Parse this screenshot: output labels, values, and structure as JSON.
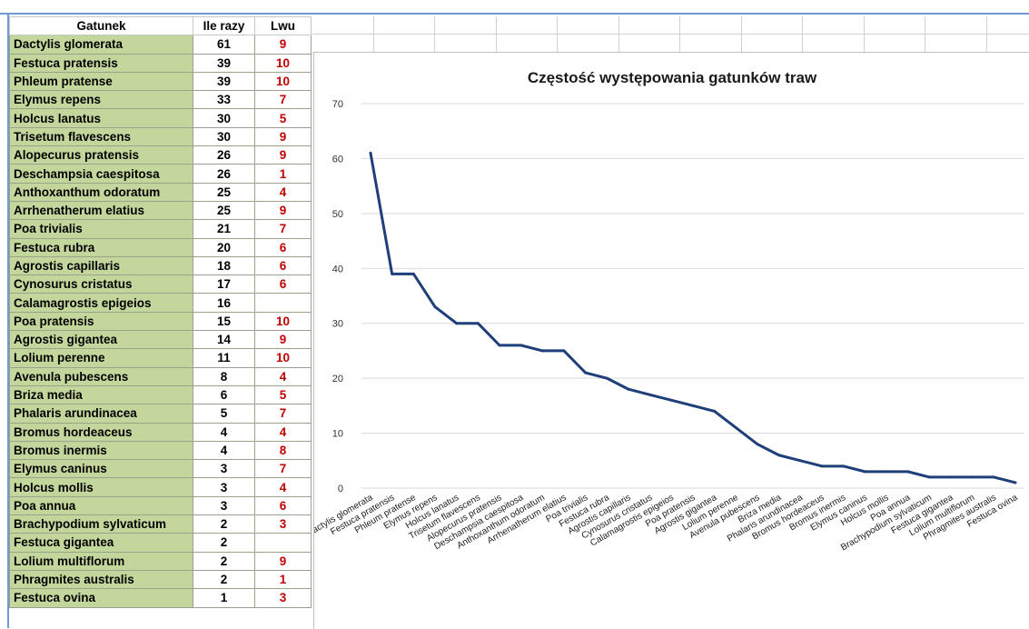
{
  "table": {
    "headers": {
      "species": "Gatunek",
      "count": "Ile razy",
      "lwu": "Lwu"
    },
    "rows": [
      {
        "species": "Dactylis glomerata",
        "count": "61",
        "lwu": "9"
      },
      {
        "species": "Festuca pratensis",
        "count": "39",
        "lwu": "10"
      },
      {
        "species": "Phleum pratense",
        "count": "39",
        "lwu": "10"
      },
      {
        "species": "Elymus repens",
        "count": "33",
        "lwu": "7"
      },
      {
        "species": "Holcus lanatus",
        "count": "30",
        "lwu": "5"
      },
      {
        "species": "Trisetum flavescens",
        "count": "30",
        "lwu": "9"
      },
      {
        "species": "Alopecurus pratensis",
        "count": "26",
        "lwu": "9"
      },
      {
        "species": "Deschampsia caespitosa",
        "count": "26",
        "lwu": "1"
      },
      {
        "species": "Anthoxanthum odoratum",
        "count": "25",
        "lwu": "4"
      },
      {
        "species": "Arrhenatherum elatius",
        "count": "25",
        "lwu": "9"
      },
      {
        "species": "Poa trivialis",
        "count": "21",
        "lwu": "7"
      },
      {
        "species": "Festuca rubra",
        "count": "20",
        "lwu": "6"
      },
      {
        "species": "Agrostis capillaris",
        "count": "18",
        "lwu": "6"
      },
      {
        "species": "Cynosurus cristatus",
        "count": "17",
        "lwu": "6"
      },
      {
        "species": "Calamagrostis epigeios",
        "count": "16",
        "lwu": ""
      },
      {
        "species": "Poa pratensis",
        "count": "15",
        "lwu": "10"
      },
      {
        "species": "Agrostis gigantea",
        "count": "14",
        "lwu": "9"
      },
      {
        "species": "Lolium perenne",
        "count": "11",
        "lwu": "10"
      },
      {
        "species": "Avenula pubescens",
        "count": "8",
        "lwu": "4"
      },
      {
        "species": "Briza media",
        "count": "6",
        "lwu": "5"
      },
      {
        "species": "Phalaris arundinacea",
        "count": "5",
        "lwu": "7"
      },
      {
        "species": "Bromus hordeaceus",
        "count": "4",
        "lwu": "4"
      },
      {
        "species": "Bromus inermis",
        "count": "4",
        "lwu": "8"
      },
      {
        "species": "Elymus caninus",
        "count": "3",
        "lwu": "7"
      },
      {
        "species": "Holcus mollis",
        "count": "3",
        "lwu": "4"
      },
      {
        "species": "Poa annua",
        "count": "3",
        "lwu": "6"
      },
      {
        "species": "Brachypodium sylvaticum",
        "count": "2",
        "lwu": "3"
      },
      {
        "species": "Festuca gigantea",
        "count": "2",
        "lwu": ""
      },
      {
        "species": "Lolium multiflorum",
        "count": "2",
        "lwu": "9"
      },
      {
        "species": "Phragmites australis",
        "count": "2",
        "lwu": "1"
      },
      {
        "species": "Festuca ovina",
        "count": "1",
        "lwu": "3"
      }
    ]
  },
  "colors": {
    "name_cell_bg": "#c3d69b",
    "lwu_text": "#c00000",
    "line": "#1f3f7a",
    "gridline": "#d9d9d9",
    "selection_border": "#6e9ad1"
  },
  "chart_data": {
    "type": "line",
    "title": "Częstość występowania gatunków traw",
    "xlabel": "",
    "ylabel": "",
    "ylim": [
      0,
      70
    ],
    "yticks": [
      0,
      10,
      20,
      30,
      40,
      50,
      60,
      70
    ],
    "grid": true,
    "legend": "none",
    "categories": [
      "Dactylis glomerata",
      "Festuca pratensis",
      "Phleum pratense",
      "Elymus repens",
      "Holcus lanatus",
      "Trisetum flavescens",
      "Alopecurus pratensis",
      "Deschampsia caespitosa",
      "Anthoxanthum odoratum",
      "Arrhenatherum elatius",
      "Poa trivialis",
      "Festuca rubra",
      "Agrostis capillaris",
      "Cynosurus cristatus",
      "Calamagrostis epigeios",
      "Poa pratensis",
      "Agrostis gigantea",
      "Lolium perenne",
      "Avenula pubescens",
      "Briza media",
      "Phalaris arundinacea",
      "Bromus hordeaceus",
      "Bromus inermis",
      "Elymus caninus",
      "Holcus mollis",
      "Poa annua",
      "Brachypodium sylvaticum",
      "Festuca gigantea",
      "Lolium multiflorum",
      "Phragmites australis",
      "Festuca ovina"
    ],
    "values": [
      61,
      39,
      39,
      33,
      30,
      30,
      26,
      26,
      25,
      25,
      21,
      20,
      18,
      17,
      16,
      15,
      14,
      11,
      8,
      6,
      5,
      4,
      4,
      3,
      3,
      3,
      2,
      2,
      2,
      2,
      1
    ]
  }
}
